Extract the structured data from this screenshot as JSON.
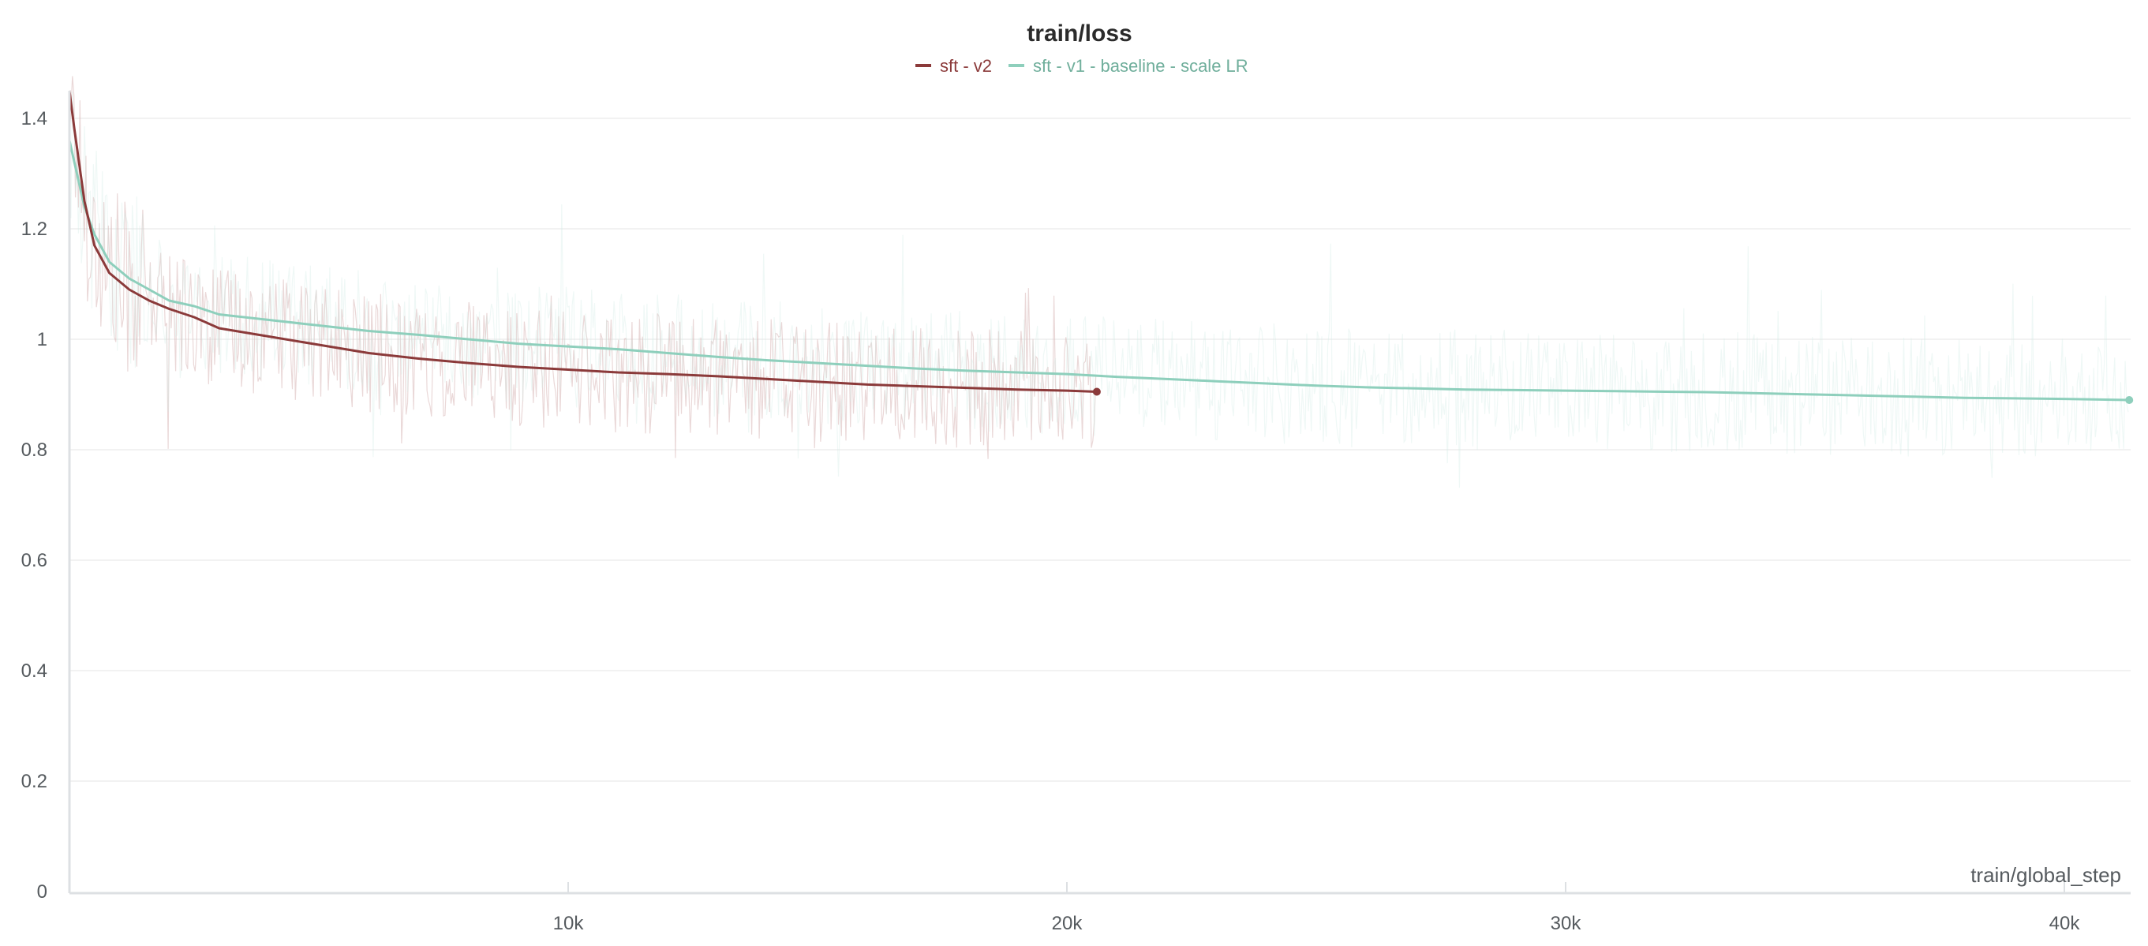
{
  "chart_data": {
    "type": "line",
    "title": "train/loss",
    "xlabel": "train/global_step",
    "ylabel": "",
    "xlim": [
      0,
      41300
    ],
    "ylim": [
      0,
      1.45
    ],
    "x_ticks": [
      10000,
      20000,
      30000,
      40000
    ],
    "x_tick_labels": [
      "10k",
      "20k",
      "30k",
      "40k"
    ],
    "y_ticks": [
      0,
      0.2,
      0.4,
      0.6,
      0.8,
      1,
      1.2,
      1.4
    ],
    "y_tick_labels": [
      "0",
      "0.2",
      "0.4",
      "0.6",
      "0.8",
      "1",
      "1.2",
      "1.4"
    ],
    "grid": true,
    "legend_position": "top-center",
    "series": [
      {
        "name": "sft - v2",
        "color": "#8b3a3a",
        "raw_color": "#d9b8b8",
        "x": [
          0,
          100,
          300,
          500,
          800,
          1200,
          1600,
          2000,
          2500,
          3000,
          4000,
          5000,
          6000,
          7000,
          8000,
          9000,
          10000,
          11000,
          12000,
          13000,
          14000,
          15000,
          16000,
          17000,
          18000,
          19000,
          20000,
          20600
        ],
        "values": [
          1.45,
          1.38,
          1.25,
          1.17,
          1.12,
          1.09,
          1.07,
          1.055,
          1.04,
          1.02,
          1.005,
          0.99,
          0.975,
          0.965,
          0.957,
          0.95,
          0.945,
          0.94,
          0.937,
          0.933,
          0.928,
          0.923,
          0.918,
          0.915,
          0.912,
          0.909,
          0.907,
          0.905
        ]
      },
      {
        "name": "sft - v1 - baseline - scale LR",
        "color": "#8ecfbc",
        "raw_color": "#d2ece5",
        "x": [
          0,
          100,
          300,
          500,
          800,
          1200,
          1600,
          2000,
          2500,
          3000,
          4000,
          5000,
          6000,
          7000,
          8000,
          9000,
          10000,
          11000,
          12000,
          13000,
          14000,
          15000,
          16000,
          17000,
          18000,
          19000,
          20000,
          21000,
          22000,
          23000,
          24000,
          25000,
          26000,
          27000,
          28000,
          29000,
          30000,
          31000,
          32000,
          33000,
          34000,
          35000,
          36000,
          37000,
          38000,
          39000,
          40000,
          41300
        ],
        "values": [
          1.36,
          1.32,
          1.24,
          1.19,
          1.14,
          1.11,
          1.09,
          1.07,
          1.06,
          1.045,
          1.035,
          1.025,
          1.015,
          1.008,
          1.0,
          0.992,
          0.987,
          0.982,
          0.975,
          0.968,
          0.962,
          0.957,
          0.952,
          0.947,
          0.943,
          0.94,
          0.937,
          0.932,
          0.928,
          0.924,
          0.92,
          0.916,
          0.913,
          0.911,
          0.909,
          0.908,
          0.907,
          0.906,
          0.905,
          0.904,
          0.902,
          0.9,
          0.898,
          0.896,
          0.894,
          0.893,
          0.892,
          0.89
        ]
      }
    ]
  }
}
